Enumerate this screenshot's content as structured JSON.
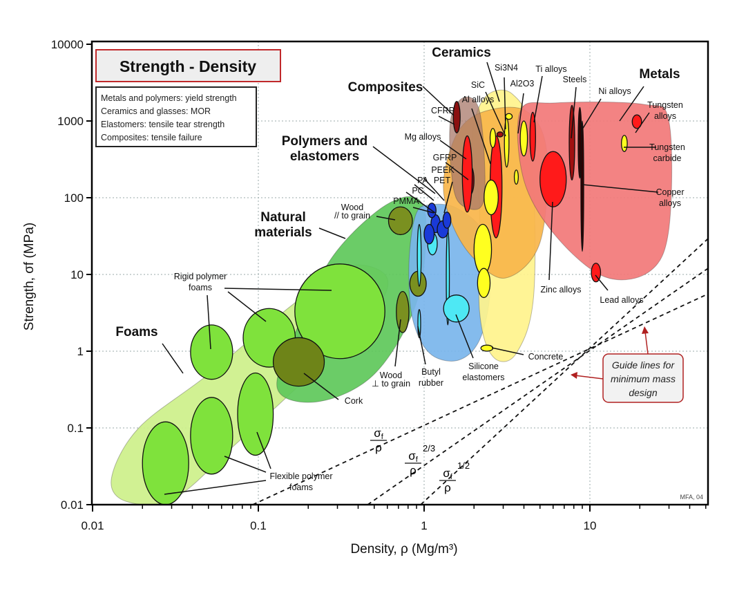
{
  "chart_data": {
    "type": "scatter",
    "title": "Strength - Density",
    "notes": [
      "Metals and polymers: yield strength",
      "Ceramics and glasses: MOR",
      "Elastomers: tensile tear strength",
      "Composites: tensile failure"
    ],
    "xlabel": "Density, ρ  (Mg/m³)",
    "ylabel": "Strength, σf (MPa)",
    "xscale": "log",
    "yscale": "log",
    "xlim": [
      0.01,
      52
    ],
    "ylim": [
      0.01,
      10000
    ],
    "xticks": [
      "0.01",
      "0.1",
      "1",
      "10"
    ],
    "yticks": [
      "10000",
      "1000",
      "100",
      "10",
      "1",
      "0.1",
      "0.01"
    ],
    "grid": true,
    "credit": "MFA, 04",
    "families": [
      {
        "name": "Foams",
        "color": "#cdf08a",
        "outline": [
          [
            0.016,
            0.011
          ],
          [
            0.013,
            0.022
          ],
          [
            0.019,
            0.1
          ],
          [
            0.05,
            0.5
          ],
          [
            0.16,
            4.0
          ],
          [
            0.34,
            12.6
          ],
          [
            0.58,
            10
          ],
          [
            0.53,
            4
          ],
          [
            0.23,
            0.62
          ],
          [
            0.074,
            0.063
          ],
          [
            0.031,
            0.012
          ]
        ]
      },
      {
        "name": "Natural materials",
        "color": "#5ec85a",
        "outline": [
          [
            0.13,
            0.33
          ],
          [
            0.175,
            2.2
          ],
          [
            0.28,
            17
          ],
          [
            0.55,
            73
          ],
          [
            0.89,
            100
          ],
          [
            1.03,
            40
          ],
          [
            0.89,
            4
          ],
          [
            0.5,
            0.5
          ],
          [
            0.23,
            0.22
          ]
        ]
      },
      {
        "name": "Polymers and elastomers",
        "color": "#79b5ec",
        "outline": [
          [
            0.81,
            14
          ],
          [
            0.89,
            60
          ],
          [
            1.09,
            81
          ],
          [
            1.6,
            72
          ],
          [
            2.33,
            32
          ],
          [
            2.5,
            6
          ],
          [
            2.16,
            1.4
          ],
          [
            1.6,
            0.76
          ],
          [
            1.08,
            0.94
          ],
          [
            0.85,
            2.7
          ]
        ]
      },
      {
        "name": "Ceramics",
        "color": "#fff38c",
        "outline": [
          [
            2.16,
            73
          ],
          [
            1.95,
            590
          ],
          [
            2.33,
            2040
          ],
          [
            3.4,
            2250
          ],
          [
            4.4,
            590
          ],
          [
            4.6,
            6
          ],
          [
            3.6,
            0.94
          ],
          [
            2.6,
            0.85
          ],
          [
            2.16,
            3.3
          ]
        ]
      },
      {
        "name": "Metals",
        "color": "#f9b54a",
        "outline": [
          [
            1.31,
            168
          ],
          [
            1.6,
            720
          ],
          [
            2.33,
            1340
          ],
          [
            4.15,
            1340
          ],
          [
            5.5,
            390
          ],
          [
            5.0,
            26
          ],
          [
            3.1,
            9
          ],
          [
            1.95,
            17
          ],
          [
            1.45,
            50
          ]
        ]
      },
      {
        "name": "Metals",
        "color": "#f27878",
        "outline": [
          [
            3.8,
            1340
          ],
          [
            6.2,
            1720
          ],
          [
            21,
            1650
          ],
          [
            30,
            980
          ],
          [
            30,
            40
          ],
          [
            23,
            11
          ],
          [
            12.3,
            9.3
          ],
          [
            6.2,
            32
          ],
          [
            4,
            168
          ]
        ]
      },
      {
        "name": "Composites",
        "color": "#a8786a",
        "outline": [
          [
            1.45,
            1090
          ],
          [
            1.75,
            2040
          ],
          [
            2.16,
            1340
          ],
          [
            2.33,
            168
          ],
          [
            2.16,
            73
          ],
          [
            1.6,
            90
          ],
          [
            1.45,
            260
          ]
        ]
      }
    ],
    "materials": [
      {
        "rho": [
          0.02,
          0.038
        ],
        "sigma": [
          0.01,
          0.12
        ],
        "color": "#7fe23c"
      },
      {
        "rho": [
          0.039,
          0.07
        ],
        "sigma": [
          0.025,
          0.25
        ],
        "color": "#7fe23c"
      },
      {
        "rho": [
          0.039,
          0.07
        ],
        "sigma": [
          0.43,
          2.2
        ],
        "color": "#7fe23c"
      },
      {
        "rho": [
          0.075,
          0.123
        ],
        "sigma": [
          0.044,
          0.52
        ],
        "color": "#7fe23c"
      },
      {
        "rho": [
          0.081,
          0.167
        ],
        "sigma": [
          0.62,
          3.6
        ],
        "color": "#7fe23c"
      },
      {
        "rho": [
          0.166,
          0.58
        ],
        "sigma": [
          0.8,
          13.7
        ],
        "color": "#7fe23c"
      },
      {
        "rho": [
          0.123,
          0.25
        ],
        "sigma": [
          0.35,
          1.5
        ],
        "color": "#6e8418"
      },
      {
        "rho": [
          0.61,
          0.85
        ],
        "sigma": [
          33,
          76
        ],
        "color": "#7a9020"
      },
      {
        "rho": [
          0.68,
          0.81
        ],
        "sigma": [
          1.75,
          6
        ],
        "color": "#7a9020"
      },
      {
        "rho": [
          0.82,
          1.03
        ],
        "sigma": [
          5.2,
          11
        ],
        "color": "#7a9020"
      },
      {
        "rho": [
          0.91,
          0.96
        ],
        "sigma": [
          7,
          45
        ],
        "color": "#4ee8f4"
      },
      {
        "rho": [
          0.92,
          0.95
        ],
        "sigma": [
          1.5,
          3.5
        ],
        "color": "#4ee8f4"
      },
      {
        "rho": [
          1.36,
          1.42
        ],
        "sigma": [
          2.2,
          38
        ],
        "color": "#4ee8f4"
      },
      {
        "rho": [
          1.31,
          1.87
        ],
        "sigma": [
          2.4,
          5.4
        ],
        "color": "#4ee8f4"
      },
      {
        "rho": [
          1.05,
          1.2
        ],
        "sigma": [
          18,
          35
        ],
        "color": "#4ee8f4"
      },
      {
        "rho": [
          1.1,
          1.25
        ],
        "sigma": [
          35,
          60
        ],
        "color": "#1a3ad8"
      },
      {
        "rho": [
          1.0,
          1.15
        ],
        "sigma": [
          25,
          45
        ],
        "color": "#1a3ad8"
      },
      {
        "rho": [
          1.2,
          1.4
        ],
        "sigma": [
          30,
          50
        ],
        "color": "#1a3ad8"
      },
      {
        "rho": [
          1.05,
          1.18
        ],
        "sigma": [
          55,
          85
        ],
        "color": "#1a3ad8"
      },
      {
        "rho": [
          1.3,
          1.45
        ],
        "sigma": [
          40,
          65
        ],
        "color": "#1a3ad8"
      },
      {
        "rho": [
          1.5,
          1.65
        ],
        "sigma": [
          700,
          1800
        ],
        "color": "#8b1010"
      },
      {
        "rho": [
          1.8,
          2.0
        ],
        "sigma": [
          110,
          260
        ],
        "color": "#8b1010"
      },
      {
        "rho": [
          1.7,
          1.95
        ],
        "sigma": [
          65,
          640
        ],
        "color": "#ff1a1a"
      },
      {
        "rho": [
          2.5,
          2.95
        ],
        "sigma": [
          30,
          640
        ],
        "color": "#ff1a1a"
      },
      {
        "rho": [
          2.75,
          3.0
        ],
        "sigma": [
          620,
          720
        ],
        "color": "#a01010"
      },
      {
        "rho": [
          4.35,
          4.7
        ],
        "sigma": [
          300,
          1300
        ],
        "color": "#ff1a1a"
      },
      {
        "rho": [
          5.0,
          7.2
        ],
        "sigma": [
          76,
          400
        ],
        "color": "#ff1a1a"
      },
      {
        "rho": [
          7.5,
          8.1
        ],
        "sigma": [
          170,
          1600
        ],
        "color": "#a01010"
      },
      {
        "rho": [
          8.5,
          8.9
        ],
        "sigma": [
          180,
          1500
        ],
        "color": "#300000"
      },
      {
        "rho": [
          8.9,
          9.1
        ],
        "sigma": [
          20,
          1000
        ],
        "color": "#300000"
      },
      {
        "rho": [
          10.2,
          11.6
        ],
        "sigma": [
          8,
          14
        ],
        "color": "#ff1a1a"
      },
      {
        "rho": [
          18,
          20.5
        ],
        "sigma": [
          800,
          1200
        ],
        "color": "#ff1a1a"
      },
      {
        "rho": [
          2.3,
          2.8
        ],
        "sigma": [
          60,
          170
        ],
        "color": "#ffff20"
      },
      {
        "rho": [
          2.0,
          2.55
        ],
        "sigma": [
          10,
          45
        ],
        "color": "#ffff20"
      },
      {
        "rho": [
          2.1,
          2.5
        ],
        "sigma": [
          5,
          12
        ],
        "color": "#ffff20"
      },
      {
        "rho": [
          2.5,
          2.7
        ],
        "sigma": [
          450,
          800
        ],
        "color": "#ffff20"
      },
      {
        "rho": [
          3.05,
          3.25
        ],
        "sigma": [
          250,
          1100
        ],
        "color": "#ffff20"
      },
      {
        "rho": [
          3.1,
          3.4
        ],
        "sigma": [
          1050,
          1250
        ],
        "color": "#ffff20"
      },
      {
        "rho": [
          3.8,
          4.2
        ],
        "sigma": [
          350,
          1000
        ],
        "color": "#ffff20"
      },
      {
        "rho": [
          3.5,
          3.7
        ],
        "sigma": [
          150,
          230
        ],
        "color": "#ffff20"
      },
      {
        "rho": [
          15.5,
          16.8
        ],
        "sigma": [
          400,
          650
        ],
        "color": "#ffff20"
      },
      {
        "rho": [
          2.2,
          2.6
        ],
        "sigma": [
          1,
          1.2
        ],
        "color": "#ffff20"
      }
    ],
    "guide_lines": [
      {
        "C": 0.108,
        "n": 1,
        "num": "σ",
        "sub": "f",
        "den": "ρ",
        "exp": ""
      },
      {
        "C": 0.0324,
        "n": 1.5,
        "num": "σ",
        "sub": "f",
        "den": "ρ",
        "exp": "2/3"
      },
      {
        "C": 0.011,
        "n": 2,
        "num": "σ",
        "sub": "f",
        "den": "ρ",
        "exp": "1/2"
      }
    ],
    "guide_note": [
      "Guide lines for",
      "minimum mass",
      "design"
    ],
    "group_labels": [
      [
        "Ceramics"
      ],
      [
        "Composites"
      ],
      [
        "Metals"
      ],
      [
        "Polymers and",
        "elastomers"
      ],
      [
        "Natural",
        "materials"
      ],
      [
        "Foams"
      ]
    ],
    "annotations": [
      [
        "Si3N4"
      ],
      [
        "Al2O3"
      ],
      [
        "SiC"
      ],
      [
        "Al alloys"
      ],
      [
        "CFRP"
      ],
      [
        "Ti alloys"
      ],
      [
        "Steels"
      ],
      [
        "Ni alloys"
      ],
      [
        "Tungsten",
        "alloys"
      ],
      [
        "Tungsten",
        "carbide"
      ],
      [
        "Copper",
        "alloys"
      ],
      [
        "Mg alloys"
      ],
      [
        "GFRP"
      ],
      [
        "PEEK"
      ],
      [
        "PA"
      ],
      [
        "PC"
      ],
      [
        "PET"
      ],
      [
        "PMMA"
      ],
      [
        "Wood",
        "// to grain"
      ],
      [
        "Rigid polymer",
        "foams"
      ],
      [
        "Cork"
      ],
      [
        "Flexible polymer",
        "foams"
      ],
      [
        "Wood",
        "⊥ to grain"
      ],
      [
        "Butyl",
        "rubber"
      ],
      [
        "Silicone",
        "elastomers"
      ],
      [
        "Concrete"
      ],
      [
        "Zinc alloys"
      ],
      [
        "Lead alloys"
      ]
    ]
  }
}
